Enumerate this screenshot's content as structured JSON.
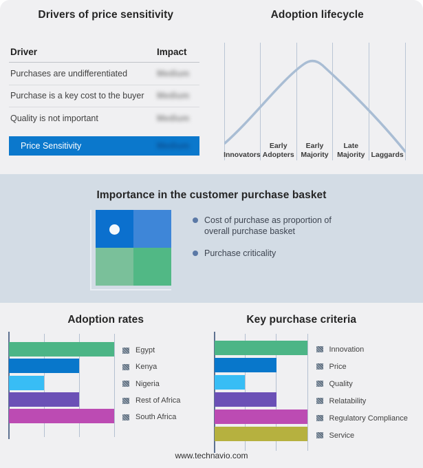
{
  "page": {
    "footer": "www.technavio.com"
  },
  "drivers_table": {
    "title": "Drivers of price sensitivity",
    "columns": [
      "Driver",
      "Impact"
    ],
    "rows": [
      {
        "driver": "Purchases are undifferentiated",
        "impact": "Medium"
      },
      {
        "driver": "Purchase is a key cost to the buyer",
        "impact": "Medium"
      },
      {
        "driver": "Quality is not important",
        "impact": "Medium"
      }
    ],
    "highlight_row": {
      "driver": "Price Sensitivity",
      "impact": "Medium"
    },
    "highlight_color": "#0b78cc"
  },
  "lifecycle": {
    "title": "Adoption lifecycle",
    "stages": [
      "Innovators",
      "Early Adopters",
      "Early Majority",
      "Late Majority",
      "Laggards"
    ],
    "curve_color": "#a9bdd4"
  },
  "purchase_basket": {
    "title": "Importance in the customer purchase basket",
    "bullets": [
      "Cost of purchase as proportion of overall purchase basket",
      "Purchase criticality"
    ],
    "quadrant_colors": {
      "top_left": "#0b70ce",
      "top_right": "#3e86d8",
      "bottom_left": "#7ac09a",
      "bottom_right": "#51b885"
    }
  },
  "chart_data": [
    {
      "type": "bar",
      "title": "Adoption rates",
      "orientation": "horizontal",
      "categories": [
        "Egypt",
        "Kenya",
        "Nigeria",
        "Rest of Africa",
        "South Africa"
      ],
      "values": [
        100,
        66.7,
        33.3,
        66.7,
        100
      ],
      "xlim": [
        0,
        100
      ],
      "grid": true,
      "legend_position": "right",
      "colors": [
        "#4cb586",
        "#0877cb",
        "#38bdf5",
        "#6b50b6",
        "#bc4bb3"
      ]
    },
    {
      "type": "bar",
      "title": "Key purchase criteria",
      "orientation": "horizontal",
      "categories": [
        "Innovation",
        "Price",
        "Quality",
        "Relatability",
        "Regulatory Compliance",
        "Service"
      ],
      "values": [
        100,
        66.7,
        33.3,
        66.7,
        100,
        100
      ],
      "xlim": [
        0,
        100
      ],
      "grid": true,
      "legend_position": "right",
      "colors": [
        "#4cb586",
        "#0877cb",
        "#38bdf5",
        "#6b50b6",
        "#bc4bb3",
        "#b6b13f"
      ]
    }
  ]
}
